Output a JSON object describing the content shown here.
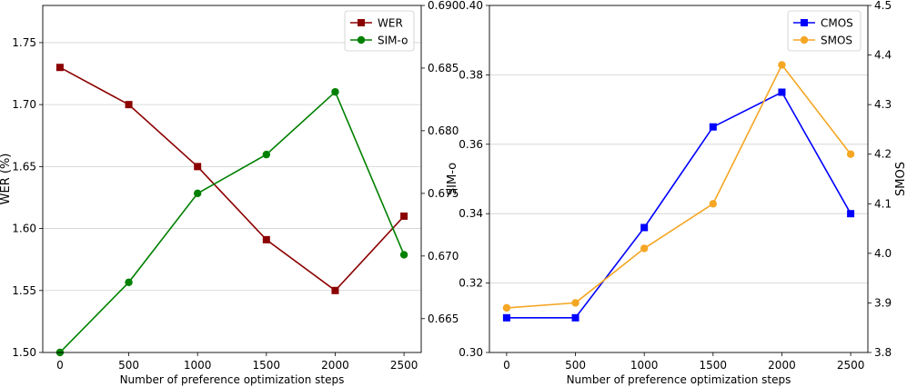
{
  "chart_data": [
    {
      "type": "line",
      "xlabel": "Number of preference optimization steps",
      "x": [
        0,
        500,
        1000,
        1500,
        2000,
        2500
      ],
      "xticks": [
        "0",
        "500",
        "1000",
        "1500",
        "2000",
        "2500"
      ],
      "xlim": [
        -125,
        2625
      ],
      "left_axis": {
        "label": "WER (%)",
        "ylim": [
          1.5,
          1.78
        ],
        "ticks": [
          "1.50",
          "1.55",
          "1.60",
          "1.65",
          "1.70",
          "1.75"
        ]
      },
      "right_axis": {
        "label": "",
        "ylim": [
          0.6623,
          0.69
        ],
        "ticks": [
          "0.665",
          "0.670",
          "0.675",
          "0.680",
          "0.685",
          "0.690"
        ]
      },
      "series": [
        {
          "name": "WER",
          "axis": "left",
          "color": "#8b0000",
          "marker": "square",
          "values": [
            1.73,
            1.7,
            1.65,
            1.591,
            1.55,
            1.61
          ]
        },
        {
          "name": "SIM-o",
          "axis": "right",
          "color": "#008000",
          "marker": "circle",
          "values": [
            0.6623,
            0.6679,
            0.675,
            0.6781,
            0.6831,
            0.6701
          ]
        }
      ],
      "legend": "top-right",
      "grid": "horizontal"
    },
    {
      "type": "line",
      "xlabel": "Number of preference optimization steps",
      "x": [
        0,
        500,
        1000,
        1500,
        2000,
        2500
      ],
      "xticks": [
        "0",
        "500",
        "1000",
        "1500",
        "2000",
        "2500"
      ],
      "xlim": [
        -125,
        2625
      ],
      "left_axis": {
        "label": "SIM-o",
        "ylim": [
          0.3,
          0.4
        ],
        "ticks": [
          "0.30",
          "0.32",
          "0.34",
          "0.36",
          "0.38",
          "0.40"
        ]
      },
      "right_axis": {
        "label": "SMOS",
        "ylim": [
          3.8,
          4.5
        ],
        "ticks": [
          "3.8",
          "3.9",
          "4.0",
          "4.1",
          "4.2",
          "4.3",
          "4.4",
          "4.5"
        ]
      },
      "series": [
        {
          "name": "CMOS",
          "axis": "left",
          "color": "#0000ff",
          "marker": "square",
          "values": [
            0.31,
            0.31,
            0.336,
            0.365,
            0.375,
            0.34
          ]
        },
        {
          "name": "SMOS",
          "axis": "right",
          "color": "#f5a623",
          "marker": "circle",
          "values": [
            3.89,
            3.9,
            4.01,
            4.1,
            4.38,
            4.2
          ]
        }
      ],
      "legend": "top-right",
      "grid": "horizontal"
    }
  ]
}
